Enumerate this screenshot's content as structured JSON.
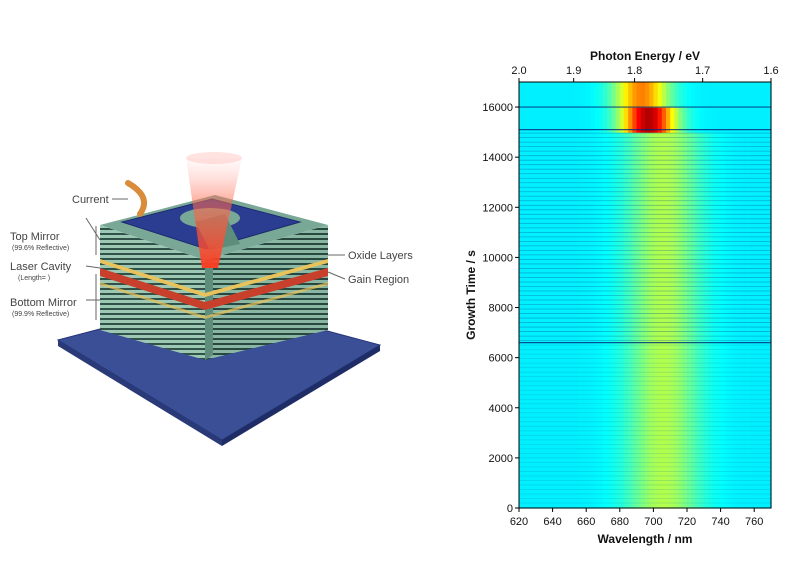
{
  "diagram": {
    "labels": {
      "current": "Current",
      "top_mirror": "Top Mirror",
      "top_mirror_sub": "(99.6% Reflective)",
      "laser_cavity": "Laser Cavity",
      "laser_cavity_sub": "(Length=   )",
      "bottom_mirror": "Bottom Mirror",
      "bottom_mirror_sub": "(99.9% Reflective)",
      "oxide_layers": "Oxide Layers",
      "gain_region": "Gain Region"
    },
    "colors": {
      "substrate": "#3b4f96",
      "contact": "#2b3d90",
      "mirror_light": "#9cc7b2",
      "mirror_dark": "#2f5148",
      "oxide": "#e8c25a",
      "gain": "#c8402c",
      "beam": "#ff3a1e",
      "wire": "#d98c3a"
    }
  },
  "chart_data": {
    "type": "heatmap",
    "title": "",
    "xlabel": "Wavelength / nm",
    "top_xlabel": "Photon Energy / eV",
    "ylabel": "Growth Time / s",
    "xlim": [
      620,
      770
    ],
    "ylim": [
      0,
      17000
    ],
    "x_ticks": [
      620,
      640,
      660,
      680,
      700,
      720,
      740,
      760
    ],
    "y_ticks": [
      0,
      2000,
      4000,
      6000,
      8000,
      10000,
      12000,
      14000,
      16000
    ],
    "top_ticks": [
      "2.0",
      "1.9",
      "1.8",
      "1.7",
      "1.6"
    ],
    "top_tick_values": [
      2.0,
      1.9,
      1.8,
      1.7,
      1.6
    ],
    "colormap": "jet",
    "features": [
      {
        "name": "main-band",
        "center_nm": 706,
        "width_nm": 22,
        "from_s": 0,
        "to_s": 15000,
        "level": 0.55
      },
      {
        "name": "hot-spot",
        "center_nm": 697,
        "width_nm": 16,
        "from_s": 15100,
        "to_s": 16000,
        "level": 0.95
      },
      {
        "name": "top-band",
        "center_nm": 693,
        "width_nm": 16,
        "from_s": 16000,
        "to_s": 17000,
        "level": 0.75
      }
    ]
  }
}
